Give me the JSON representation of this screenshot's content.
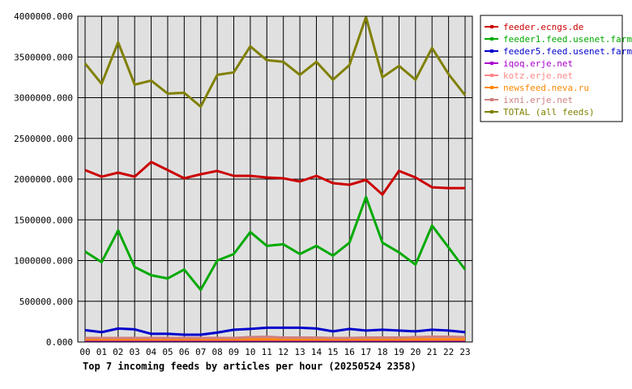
{
  "chart_data": {
    "type": "line",
    "title": "Top 7 incoming feeds by articles per hour (20250524 2358)",
    "xlabel": "",
    "ylabel": "",
    "categories": [
      "00",
      "01",
      "02",
      "03",
      "04",
      "05",
      "06",
      "07",
      "08",
      "09",
      "10",
      "11",
      "12",
      "13",
      "14",
      "15",
      "16",
      "17",
      "18",
      "19",
      "20",
      "21",
      "22",
      "23"
    ],
    "ylim": [
      0,
      4000000
    ],
    "yticks": [
      "0.000",
      "500000.000",
      "1000000.000",
      "1500000.000",
      "2000000.000",
      "2500000.000",
      "3000000.000",
      "3500000.000",
      "4000000.000"
    ],
    "grid": true,
    "legend_position": "right",
    "series": [
      {
        "name": "feeder.ecngs.de",
        "color": "#cc0000",
        "values": [
          2110000,
          2030000,
          2080000,
          2030000,
          2210000,
          2110000,
          2010000,
          2060000,
          2100000,
          2040000,
          2040000,
          2020000,
          2010000,
          1970000,
          2040000,
          1950000,
          1930000,
          1990000,
          1810000,
          2100000,
          2020000,
          1900000,
          1890000,
          1890000
        ]
      },
      {
        "name": "feeder1.feed.usenet.farm",
        "color": "#00aa00",
        "values": [
          1110000,
          980000,
          1370000,
          920000,
          820000,
          780000,
          890000,
          640000,
          1000000,
          1080000,
          1350000,
          1180000,
          1200000,
          1080000,
          1180000,
          1060000,
          1220000,
          1780000,
          1220000,
          1100000,
          950000,
          1430000,
          1160000,
          890000
        ]
      },
      {
        "name": "feeder5.feed.usenet.farm",
        "color": "#0000cc",
        "values": [
          145000,
          120000,
          165000,
          155000,
          100000,
          100000,
          90000,
          90000,
          115000,
          150000,
          160000,
          175000,
          175000,
          175000,
          165000,
          130000,
          160000,
          140000,
          150000,
          140000,
          130000,
          150000,
          140000,
          120000
        ]
      },
      {
        "name": "iqoq.erje.net",
        "color": "#aa00cc",
        "values": [
          20000,
          20000,
          20000,
          20000,
          20000,
          20000,
          20000,
          20000,
          20000,
          20000,
          20000,
          20000,
          20000,
          20000,
          20000,
          20000,
          20000,
          20000,
          20000,
          20000,
          20000,
          20000,
          20000,
          20000
        ]
      },
      {
        "name": "kotz.erje.net",
        "color": "#ff8888",
        "values": [
          40000,
          40000,
          45000,
          40000,
          40000,
          40000,
          35000,
          40000,
          40000,
          45000,
          60000,
          60000,
          45000,
          45000,
          50000,
          45000,
          45000,
          50000,
          45000,
          50000,
          55000,
          60000,
          55000,
          50000
        ]
      },
      {
        "name": "newsfeed.neva.ru",
        "color": "#ff8800",
        "values": [
          30000,
          30000,
          30000,
          30000,
          30000,
          30000,
          30000,
          30000,
          30000,
          30000,
          30000,
          30000,
          30000,
          30000,
          30000,
          30000,
          30000,
          30000,
          30000,
          30000,
          30000,
          30000,
          30000,
          30000
        ]
      },
      {
        "name": "ixni.erje.net",
        "color": "#d08080",
        "values": [
          50000,
          50000,
          50000,
          50000,
          50000,
          50000,
          50000,
          50000,
          50000,
          50000,
          60000,
          65000,
          55000,
          55000,
          55000,
          50000,
          50000,
          55000,
          55000,
          55000,
          60000,
          65000,
          65000,
          60000
        ]
      },
      {
        "name": "TOTAL (all feeds)",
        "color": "#808000",
        "values": [
          3420000,
          3170000,
          3680000,
          3160000,
          3210000,
          3050000,
          3060000,
          2890000,
          3280000,
          3310000,
          3630000,
          3460000,
          3440000,
          3280000,
          3440000,
          3220000,
          3400000,
          3990000,
          3250000,
          3390000,
          3220000,
          3610000,
          3290000,
          3030000
        ]
      }
    ]
  }
}
